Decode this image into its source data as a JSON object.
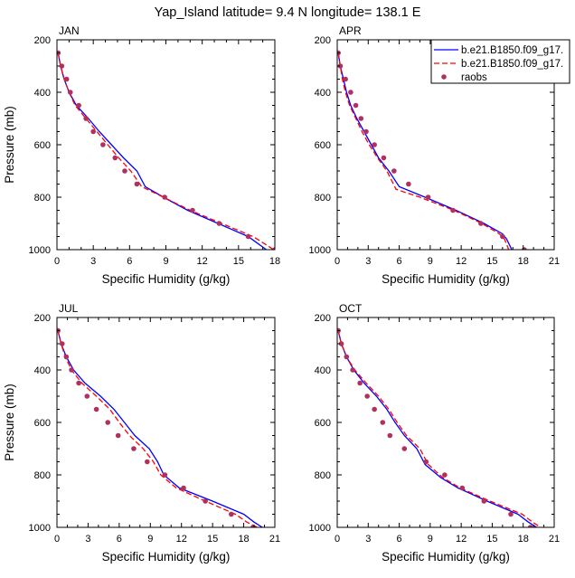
{
  "figure": {
    "title": "Yap_Island  latitude= 9.4 N longitude= 138.1 E"
  },
  "legend": {
    "entries": [
      {
        "label": "b.e21.B1850.f09_g17.",
        "style": "solid",
        "color": "#0000ff"
      },
      {
        "label": "b.e21.B1850.f09_g17.",
        "style": "dashed",
        "color": "#ff0000"
      },
      {
        "label": "raobs",
        "style": "dots",
        "color": "#b03060"
      }
    ]
  },
  "chart_data": [
    {
      "type": "line",
      "panel": "JAN",
      "title": "JAN",
      "xlabel": "Specific Humidity (g/kg)",
      "ylabel": "Pressure (mb)",
      "xlim": [
        0,
        18
      ],
      "ylim": [
        200,
        1000
      ],
      "y_reversed": true,
      "xticks": [
        0,
        3,
        6,
        9,
        12,
        15,
        18
      ],
      "yticks": [
        200,
        400,
        600,
        800,
        1000
      ],
      "series": [
        {
          "style": "solid",
          "color": "#0000ff",
          "points": [
            [
              0.1,
              250
            ],
            [
              0.3,
              300
            ],
            [
              0.6,
              350
            ],
            [
              1.0,
              400
            ],
            [
              1.6,
              450
            ],
            [
              2.6,
              500
            ],
            [
              3.5,
              550
            ],
            [
              4.5,
              600
            ],
            [
              5.5,
              650
            ],
            [
              6.6,
              700
            ],
            [
              7.3,
              760
            ],
            [
              8.8,
              800
            ],
            [
              10.8,
              850
            ],
            [
              13.3,
              900
            ],
            [
              15.8,
              950
            ],
            [
              16.4,
              970
            ],
            [
              17.3,
              1000
            ]
          ]
        },
        {
          "style": "dashed",
          "color": "#ff0000",
          "points": [
            [
              0.1,
              250
            ],
            [
              0.3,
              300
            ],
            [
              0.6,
              350
            ],
            [
              1.0,
              400
            ],
            [
              1.5,
              450
            ],
            [
              2.4,
              500
            ],
            [
              3.3,
              550
            ],
            [
              4.2,
              600
            ],
            [
              5.1,
              650
            ],
            [
              6.1,
              700
            ],
            [
              7.0,
              760
            ],
            [
              8.8,
              800
            ],
            [
              11.0,
              850
            ],
            [
              13.6,
              900
            ],
            [
              16.2,
              950
            ],
            [
              16.9,
              970
            ],
            [
              17.9,
              1000
            ]
          ]
        },
        {
          "style": "dots",
          "color": "#b03060",
          "points": [
            [
              0.1,
              250
            ],
            [
              0.4,
              300
            ],
            [
              0.8,
              350
            ],
            [
              1.1,
              400
            ],
            [
              1.8,
              450
            ],
            [
              2.4,
              500
            ],
            [
              3.0,
              550
            ],
            [
              3.8,
              600
            ],
            [
              4.8,
              650
            ],
            [
              5.6,
              700
            ],
            [
              6.6,
              750
            ],
            [
              8.9,
              800
            ],
            [
              11.2,
              850
            ],
            [
              13.4,
              900
            ],
            [
              15.8,
              950
            ],
            [
              18.0,
              1000
            ]
          ]
        }
      ]
    },
    {
      "type": "line",
      "panel": "APR",
      "title": "APR",
      "xlabel": "Specific Humidity (g/kg)",
      "ylabel": "",
      "xlim": [
        0,
        21
      ],
      "ylim": [
        200,
        1000
      ],
      "y_reversed": true,
      "xticks": [
        0,
        3,
        6,
        9,
        12,
        15,
        18,
        21
      ],
      "yticks": [
        200,
        400,
        600,
        800,
        1000
      ],
      "series": [
        {
          "style": "solid",
          "color": "#0000ff",
          "points": [
            [
              0.1,
              250
            ],
            [
              0.3,
              300
            ],
            [
              0.6,
              350
            ],
            [
              0.9,
              400
            ],
            [
              1.3,
              450
            ],
            [
              1.9,
              500
            ],
            [
              2.6,
              550
            ],
            [
              3.3,
              600
            ],
            [
              4.0,
              650
            ],
            [
              5.0,
              700
            ],
            [
              6.0,
              760
            ],
            [
              8.5,
              800
            ],
            [
              11.5,
              850
            ],
            [
              14.2,
              900
            ],
            [
              16.0,
              940
            ],
            [
              16.4,
              960
            ],
            [
              16.9,
              1000
            ]
          ]
        },
        {
          "style": "dashed",
          "color": "#ff0000",
          "points": [
            [
              0.1,
              250
            ],
            [
              0.3,
              300
            ],
            [
              0.5,
              350
            ],
            [
              0.8,
              400
            ],
            [
              1.2,
              450
            ],
            [
              1.8,
              500
            ],
            [
              2.4,
              550
            ],
            [
              3.1,
              600
            ],
            [
              3.9,
              650
            ],
            [
              4.8,
              700
            ],
            [
              5.7,
              770
            ],
            [
              8.0,
              800
            ],
            [
              11.3,
              850
            ],
            [
              14.0,
              900
            ],
            [
              15.7,
              940
            ],
            [
              16.2,
              960
            ],
            [
              16.6,
              1000
            ]
          ]
        },
        {
          "style": "dots",
          "color": "#b03060",
          "points": [
            [
              0.1,
              250
            ],
            [
              0.3,
              300
            ],
            [
              0.8,
              350
            ],
            [
              1.3,
              400
            ],
            [
              1.8,
              450
            ],
            [
              2.3,
              500
            ],
            [
              2.8,
              550
            ],
            [
              3.6,
              600
            ],
            [
              4.5,
              650
            ],
            [
              5.5,
              700
            ],
            [
              6.9,
              750
            ],
            [
              8.8,
              800
            ],
            [
              11.2,
              850
            ],
            [
              13.9,
              900
            ],
            [
              16.0,
              950
            ],
            [
              18.1,
              1000
            ]
          ]
        }
      ]
    },
    {
      "type": "line",
      "panel": "JUL",
      "title": "JUL",
      "xlabel": "Specific Humidity (g/kg)",
      "ylabel": "Pressure (mb)",
      "xlim": [
        0,
        21
      ],
      "ylim": [
        200,
        1000
      ],
      "y_reversed": true,
      "xticks": [
        0,
        3,
        6,
        9,
        12,
        15,
        18,
        21
      ],
      "yticks": [
        200,
        400,
        600,
        800,
        1000
      ],
      "series": [
        {
          "style": "solid",
          "color": "#0000ff",
          "points": [
            [
              0.1,
              250
            ],
            [
              0.4,
              300
            ],
            [
              0.9,
              350
            ],
            [
              1.6,
              400
            ],
            [
              2.7,
              450
            ],
            [
              4.2,
              500
            ],
            [
              5.5,
              550
            ],
            [
              6.5,
              600
            ],
            [
              7.5,
              650
            ],
            [
              8.9,
              700
            ],
            [
              9.7,
              750
            ],
            [
              10.3,
              800
            ],
            [
              11.8,
              850
            ],
            [
              15.0,
              900
            ],
            [
              18.0,
              950
            ],
            [
              19.0,
              980
            ],
            [
              19.8,
              1000
            ]
          ]
        },
        {
          "style": "dashed",
          "color": "#ff0000",
          "points": [
            [
              0.1,
              250
            ],
            [
              0.4,
              300
            ],
            [
              0.8,
              350
            ],
            [
              1.4,
              400
            ],
            [
              2.4,
              450
            ],
            [
              3.8,
              500
            ],
            [
              5.1,
              550
            ],
            [
              6.0,
              600
            ],
            [
              7.0,
              650
            ],
            [
              8.3,
              700
            ],
            [
              9.3,
              750
            ],
            [
              10.0,
              800
            ],
            [
              11.5,
              850
            ],
            [
              14.3,
              900
            ],
            [
              17.2,
              950
            ],
            [
              18.3,
              980
            ],
            [
              19.3,
              1000
            ]
          ]
        },
        {
          "style": "dots",
          "color": "#b03060",
          "points": [
            [
              0.1,
              250
            ],
            [
              0.5,
              300
            ],
            [
              0.9,
              350
            ],
            [
              1.4,
              400
            ],
            [
              2.1,
              450
            ],
            [
              2.9,
              500
            ],
            [
              3.8,
              550
            ],
            [
              4.9,
              600
            ],
            [
              5.9,
              650
            ],
            [
              7.4,
              700
            ],
            [
              8.7,
              750
            ],
            [
              10.4,
              800
            ],
            [
              12.2,
              850
            ],
            [
              14.3,
              900
            ],
            [
              16.8,
              950
            ],
            [
              18.9,
              1000
            ]
          ]
        }
      ]
    },
    {
      "type": "line",
      "panel": "OCT",
      "title": "OCT",
      "xlabel": "Specific Humidity (g/kg)",
      "ylabel": "",
      "xlim": [
        0,
        21
      ],
      "ylim": [
        200,
        1000
      ],
      "y_reversed": true,
      "xticks": [
        0,
        3,
        6,
        9,
        12,
        15,
        18,
        21
      ],
      "yticks": [
        200,
        400,
        600,
        800,
        1000
      ],
      "series": [
        {
          "style": "solid",
          "color": "#0000ff",
          "points": [
            [
              0.1,
              250
            ],
            [
              0.4,
              300
            ],
            [
              0.9,
              350
            ],
            [
              1.6,
              400
            ],
            [
              2.6,
              450
            ],
            [
              3.8,
              500
            ],
            [
              4.8,
              550
            ],
            [
              5.6,
              600
            ],
            [
              6.5,
              650
            ],
            [
              7.7,
              700
            ],
            [
              8.5,
              760
            ],
            [
              10.0,
              810
            ],
            [
              11.7,
              850
            ],
            [
              14.5,
              900
            ],
            [
              17.5,
              950
            ],
            [
              18.5,
              980
            ],
            [
              19.3,
              1000
            ]
          ]
        },
        {
          "style": "dashed",
          "color": "#ff0000",
          "points": [
            [
              0.1,
              250
            ],
            [
              0.4,
              300
            ],
            [
              0.9,
              350
            ],
            [
              1.7,
              400
            ],
            [
              2.8,
              450
            ],
            [
              4.0,
              500
            ],
            [
              5.0,
              550
            ],
            [
              5.8,
              600
            ],
            [
              6.7,
              650
            ],
            [
              8.0,
              700
            ],
            [
              8.8,
              760
            ],
            [
              10.2,
              810
            ],
            [
              11.9,
              850
            ],
            [
              14.8,
              900
            ],
            [
              17.9,
              950
            ],
            [
              18.9,
              980
            ],
            [
              19.7,
              1000
            ]
          ]
        },
        {
          "style": "dots",
          "color": "#b03060",
          "points": [
            [
              0.1,
              250
            ],
            [
              0.4,
              300
            ],
            [
              0.9,
              350
            ],
            [
              1.5,
              400
            ],
            [
              2.2,
              450
            ],
            [
              2.9,
              500
            ],
            [
              3.6,
              550
            ],
            [
              4.4,
              600
            ],
            [
              5.1,
              650
            ],
            [
              6.5,
              700
            ],
            [
              8.6,
              750
            ],
            [
              10.4,
              800
            ],
            [
              12.1,
              850
            ],
            [
              14.2,
              900
            ],
            [
              16.8,
              950
            ],
            [
              18.7,
              1000
            ]
          ]
        }
      ]
    }
  ]
}
